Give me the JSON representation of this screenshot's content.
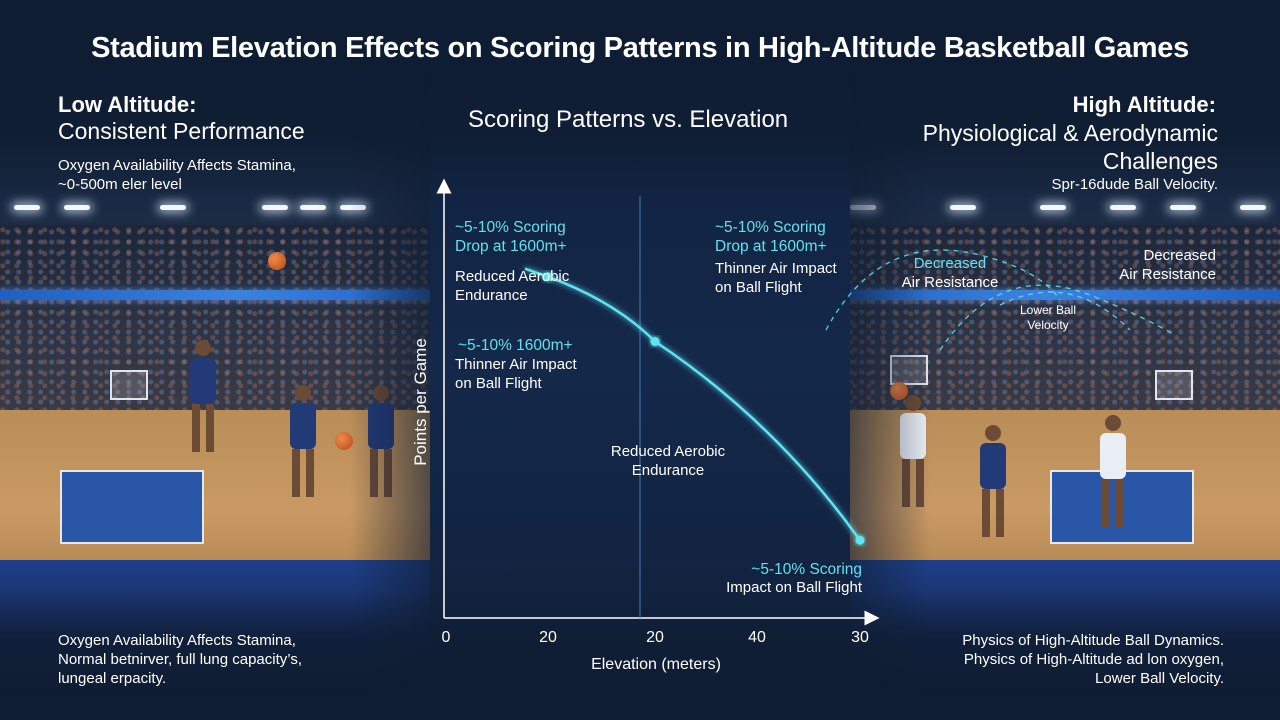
{
  "page": {
    "title": "Stadium Elevation Effects on Scoring Patterns in High-Altitude Basketball Games",
    "left_heading": {
      "line1": "Low Altitude:",
      "line2": "Consistent Performance"
    },
    "right_heading": {
      "line1": "High Altitude:",
      "line2": [
        "Physiological & Aerodynamic",
        "Challenges"
      ]
    },
    "left_top_note": [
      "Oxygen Availability Affects Stamina,",
      "~0-500m eler level"
    ],
    "right_top_note": [
      "Spr-16dude Ball Velocity."
    ],
    "left_bottom_note": [
      "Oxygen Availability Affects Stamina,",
      "Normal betnirver, full lung capacity’s,",
      "lungeal erpacity."
    ],
    "right_bottom_note": [
      "Physics of High-Altitude Ball Dynamics.",
      "Physics of High-Altitude ad lon oxygen,",
      "Lower Ball Velocity."
    ]
  },
  "chart_data": {
    "type": "line",
    "title": "Scoring Patterns vs. Elevation",
    "xlabel": "Elevation (meters)",
    "ylabel": "Points per Game",
    "x_ticks": [
      "0",
      "20",
      "20",
      "40",
      "30"
    ],
    "series": [
      {
        "points": [
          {
            "x_index": 1,
            "y": 0.79
          },
          {
            "x_index": 2,
            "y": 0.64
          },
          {
            "x_index": 4,
            "y": 0.18
          }
        ]
      }
    ],
    "y_range": [
      0,
      1
    ],
    "grid": false,
    "line_color": "#5fe3f2",
    "annotations": {
      "a1": {
        "lines": [
          "~5-10% Scoring",
          "Drop at 1600m+"
        ],
        "color": "#5fe3f2"
      },
      "a2": {
        "lines": [
          "Reduced Aerobic",
          "Endurance"
        ],
        "color": "#ffffff"
      },
      "a3": {
        "lines": [
          "~5-10% 1600m+"
        ],
        "color": "#5fe3f2"
      },
      "a4": {
        "lines": [
          "Thinner Air Impact",
          "on Ball Flight"
        ],
        "color": "#ffffff"
      },
      "a5": {
        "lines": [
          "Reduced Aerobic",
          "Endurance"
        ],
        "color": "#ffffff"
      },
      "a6": {
        "lines": [
          "~5-10% Scoring",
          "Drop at 1600m+"
        ],
        "color": "#5fe3f2"
      },
      "a7": {
        "lines": [
          "Thinner Air Impact",
          "on Ball Flight"
        ],
        "color": "#ffffff"
      },
      "a8": {
        "lines": [
          "Decreased",
          "Air Resistance"
        ],
        "color": "#5fe3f2",
        "line2_color": "#ffffff"
      },
      "a9": {
        "lines": [
          "Decreased",
          "Air Resistance"
        ],
        "color": "#ffffff"
      },
      "a10": {
        "lines": [
          "Lower Ball",
          "Velocity"
        ],
        "color": "#ffffff"
      },
      "a11": {
        "lines": [
          "~5-10% Scoring"
        ],
        "color": "#5fe3f2"
      },
      "a12": {
        "lines": [
          "Impact on Ball Flight"
        ],
        "color": "#ffffff"
      }
    }
  }
}
